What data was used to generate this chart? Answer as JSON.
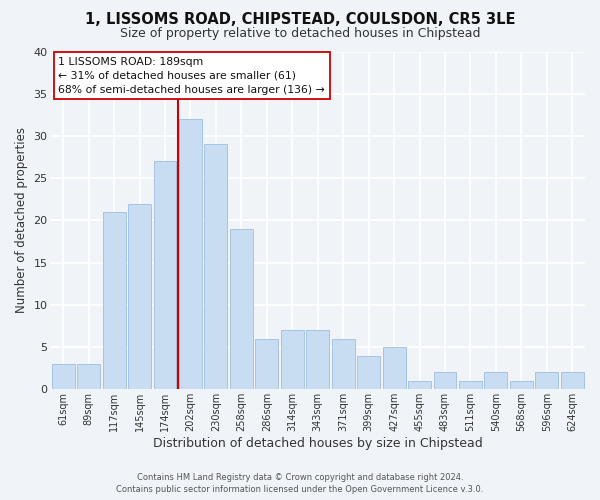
{
  "title": "1, LISSOMS ROAD, CHIPSTEAD, COULSDON, CR5 3LE",
  "subtitle": "Size of property relative to detached houses in Chipstead",
  "xlabel": "Distribution of detached houses by size in Chipstead",
  "ylabel": "Number of detached properties",
  "bar_color": "#c9ddf2",
  "bar_edge_color": "#9dbfdf",
  "categories": [
    "61sqm",
    "89sqm",
    "117sqm",
    "145sqm",
    "174sqm",
    "202sqm",
    "230sqm",
    "258sqm",
    "286sqm",
    "314sqm",
    "343sqm",
    "371sqm",
    "399sqm",
    "427sqm",
    "455sqm",
    "483sqm",
    "511sqm",
    "540sqm",
    "568sqm",
    "596sqm",
    "624sqm"
  ],
  "values": [
    3,
    3,
    21,
    22,
    27,
    32,
    29,
    19,
    6,
    7,
    7,
    6,
    4,
    5,
    1,
    2,
    1,
    2,
    1,
    2,
    2
  ],
  "ylim": [
    0,
    40
  ],
  "yticks": [
    0,
    5,
    10,
    15,
    20,
    25,
    30,
    35,
    40
  ],
  "vline_color": "#cc0000",
  "annotation_title": "1 LISSOMS ROAD: 189sqm",
  "annotation_line1": "← 31% of detached houses are smaller (61)",
  "annotation_line2": "68% of semi-detached houses are larger (136) →",
  "footer1": "Contains HM Land Registry data © Crown copyright and database right 2024.",
  "footer2": "Contains public sector information licensed under the Open Government Licence v.3.0.",
  "background_color": "#f0f4f8",
  "grid_color": "#ffffff",
  "annotation_box_facecolor": "#ffffff",
  "annotation_box_edgecolor": "#cc0000",
  "title_fontsize": 10.5,
  "subtitle_fontsize": 9,
  "tick_fontsize": 7,
  "ylabel_fontsize": 8.5,
  "xlabel_fontsize": 9
}
